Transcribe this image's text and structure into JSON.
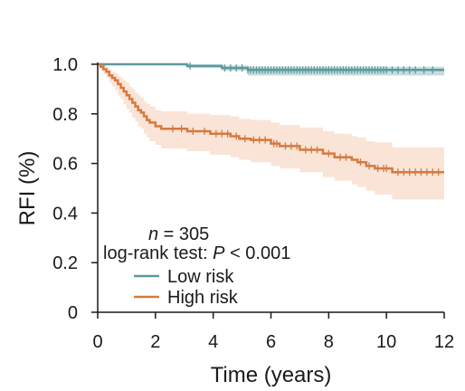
{
  "chart_data": {
    "type": "line",
    "subtype": "kaplan-meier",
    "title": "",
    "xlabel": "Time (years)",
    "ylabel": "RFI (%)",
    "xlim": [
      0,
      12
    ],
    "ylim": [
      0,
      1.0
    ],
    "x_ticks": [
      "0",
      "2",
      "4",
      "6",
      "8",
      "10",
      "12"
    ],
    "y_ticks": [
      "0",
      "0.2",
      "0.4",
      "0.6",
      "0.8",
      "1.0"
    ],
    "grid": false,
    "legend_placement": "bottom-left",
    "annotation": {
      "n_prefix": "n",
      "n_text": " = 305",
      "test_prefix": "log-rank test: ",
      "p_symbol": "P",
      "p_text": " < 0.001"
    },
    "series": [
      {
        "name": "Low risk",
        "color": "#5a9a9d",
        "band_color": "#5a9a9d",
        "x": [
          0,
          3.1,
          3.1,
          4.3,
          4.3,
          5.2,
          5.2,
          12
        ],
        "y": [
          1.0,
          1.0,
          0.993,
          0.993,
          0.985,
          0.985,
          0.977,
          0.977
        ],
        "lower": [
          1.0,
          1.0,
          0.985,
          0.985,
          0.975,
          0.975,
          0.955,
          0.955
        ],
        "upper": [
          1.0,
          1.0,
          1.0,
          1.0,
          0.995,
          0.995,
          0.99,
          0.99
        ],
        "censor_x": [
          3.2,
          4.4,
          4.6,
          4.8,
          5.0,
          5.2,
          5.3,
          5.4,
          5.5,
          5.6,
          5.7,
          5.8,
          5.9,
          6.0,
          6.1,
          6.2,
          6.3,
          6.4,
          6.5,
          6.6,
          6.7,
          6.8,
          6.9,
          7.0,
          7.1,
          7.2,
          7.3,
          7.4,
          7.5,
          7.6,
          7.7,
          7.8,
          7.9,
          8.0,
          8.1,
          8.2,
          8.3,
          8.4,
          8.5,
          8.6,
          8.7,
          8.8,
          8.9,
          9.0,
          9.1,
          9.2,
          9.3,
          9.4,
          9.5,
          9.6,
          9.7,
          9.8,
          9.9,
          10.0,
          10.2,
          10.4,
          10.6,
          10.8,
          11.0,
          11.3,
          11.6
        ]
      },
      {
        "name": "High risk",
        "color": "#d57a3f",
        "band_color": "#f2b28d",
        "x": [
          0,
          0.1,
          0.1,
          0.2,
          0.2,
          0.3,
          0.3,
          0.4,
          0.4,
          0.5,
          0.5,
          0.6,
          0.6,
          0.7,
          0.7,
          0.8,
          0.8,
          0.9,
          0.9,
          1.0,
          1.0,
          1.1,
          1.1,
          1.2,
          1.2,
          1.3,
          1.3,
          1.4,
          1.4,
          1.5,
          1.5,
          1.6,
          1.6,
          1.7,
          1.7,
          1.8,
          1.8,
          2.0,
          2.0,
          2.2,
          2.2,
          2.5,
          2.5,
          3.1,
          3.1,
          3.5,
          3.5,
          3.9,
          3.9,
          4.6,
          4.6,
          4.9,
          4.9,
          5.3,
          5.3,
          6.0,
          6.0,
          6.3,
          6.3,
          7.0,
          7.0,
          7.8,
          7.8,
          8.2,
          8.2,
          8.8,
          8.8,
          9.0,
          9.0,
          9.3,
          9.3,
          9.6,
          9.6,
          10.2,
          10.2,
          12
        ],
        "y": [
          1.0,
          1.0,
          0.99,
          0.99,
          0.98,
          0.98,
          0.97,
          0.97,
          0.955,
          0.955,
          0.945,
          0.945,
          0.935,
          0.935,
          0.92,
          0.92,
          0.905,
          0.905,
          0.89,
          0.89,
          0.875,
          0.875,
          0.86,
          0.86,
          0.845,
          0.845,
          0.83,
          0.83,
          0.815,
          0.815,
          0.805,
          0.805,
          0.79,
          0.79,
          0.775,
          0.775,
          0.765,
          0.765,
          0.75,
          0.75,
          0.74,
          0.74,
          0.74,
          0.74,
          0.73,
          0.73,
          0.73,
          0.73,
          0.72,
          0.72,
          0.71,
          0.71,
          0.7,
          0.7,
          0.695,
          0.695,
          0.68,
          0.68,
          0.67,
          0.67,
          0.655,
          0.655,
          0.64,
          0.64,
          0.625,
          0.625,
          0.615,
          0.615,
          0.605,
          0.605,
          0.59,
          0.59,
          0.58,
          0.58,
          0.565,
          0.565
        ],
        "lower": [
          1.0,
          1.0,
          0.975,
          0.975,
          0.96,
          0.96,
          0.945,
          0.945,
          0.925,
          0.925,
          0.91,
          0.91,
          0.895,
          0.895,
          0.875,
          0.875,
          0.86,
          0.86,
          0.84,
          0.84,
          0.82,
          0.82,
          0.805,
          0.805,
          0.785,
          0.785,
          0.77,
          0.77,
          0.75,
          0.75,
          0.74,
          0.74,
          0.72,
          0.72,
          0.705,
          0.705,
          0.69,
          0.69,
          0.675,
          0.675,
          0.66,
          0.66,
          0.66,
          0.66,
          0.65,
          0.65,
          0.65,
          0.65,
          0.635,
          0.635,
          0.625,
          0.625,
          0.615,
          0.615,
          0.605,
          0.605,
          0.59,
          0.59,
          0.58,
          0.58,
          0.565,
          0.565,
          0.545,
          0.545,
          0.53,
          0.53,
          0.515,
          0.515,
          0.505,
          0.505,
          0.49,
          0.49,
          0.475,
          0.475,
          0.455,
          0.455
        ],
        "upper": [
          1.0,
          1.0,
          1.0,
          1.0,
          0.995,
          0.995,
          0.99,
          0.99,
          0.98,
          0.98,
          0.97,
          0.97,
          0.965,
          0.965,
          0.955,
          0.955,
          0.945,
          0.945,
          0.935,
          0.935,
          0.925,
          0.925,
          0.91,
          0.91,
          0.9,
          0.9,
          0.885,
          0.885,
          0.875,
          0.875,
          0.865,
          0.865,
          0.85,
          0.85,
          0.84,
          0.84,
          0.83,
          0.83,
          0.815,
          0.815,
          0.81,
          0.81,
          0.81,
          0.81,
          0.8,
          0.8,
          0.8,
          0.8,
          0.795,
          0.795,
          0.79,
          0.79,
          0.78,
          0.78,
          0.775,
          0.775,
          0.765,
          0.765,
          0.755,
          0.755,
          0.745,
          0.745,
          0.73,
          0.73,
          0.72,
          0.72,
          0.71,
          0.71,
          0.705,
          0.705,
          0.69,
          0.69,
          0.685,
          0.685,
          0.665,
          0.665
        ],
        "censor_x": [
          2.6,
          2.9,
          3.3,
          3.7,
          4.1,
          4.3,
          4.5,
          4.8,
          5.1,
          5.4,
          5.6,
          5.8,
          6.1,
          6.2,
          6.5,
          6.7,
          6.9,
          7.2,
          7.4,
          7.6,
          8.0,
          8.4,
          8.6,
          9.1,
          9.4,
          9.7,
          9.9,
          10.0,
          10.4,
          10.6,
          10.8,
          11.0,
          11.2,
          11.4,
          11.6,
          11.8
        ]
      }
    ]
  }
}
